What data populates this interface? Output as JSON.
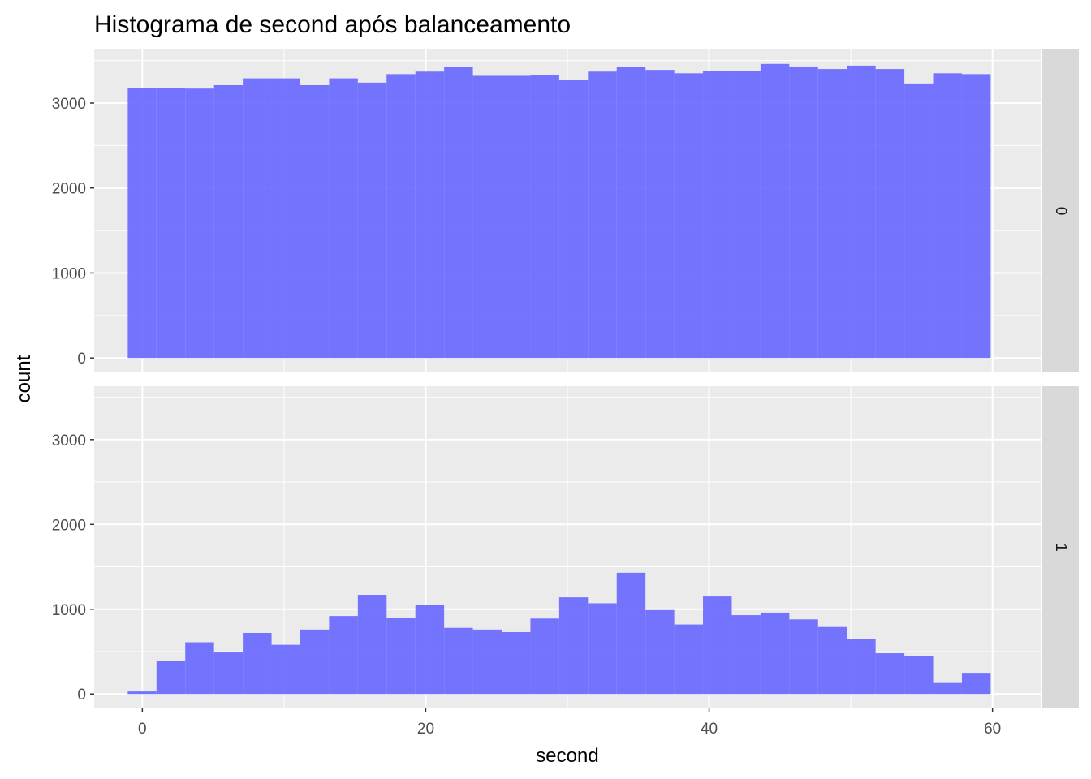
{
  "chart_data": {
    "type": "bar",
    "title": "Histograma de second após balanceamento",
    "xlabel": "second",
    "ylabel": "count",
    "xlim": [
      -3.4,
      63.4
    ],
    "ylim": [
      -170,
      3630
    ],
    "x_ticks": [
      0,
      20,
      40,
      60
    ],
    "y_ticks": [
      0,
      1000,
      2000,
      3000
    ],
    "bin_edges": [
      -1.03,
      1.0,
      3.03,
      5.06,
      7.09,
      9.12,
      11.15,
      13.18,
      15.21,
      17.24,
      19.27,
      21.3,
      23.33,
      25.36,
      27.39,
      29.42,
      31.45,
      33.48,
      35.51,
      37.54,
      39.57,
      41.6,
      43.63,
      45.66,
      47.69,
      49.72,
      51.75,
      53.78,
      55.81,
      57.84,
      59.87
    ],
    "fill_color": "#6666ff",
    "fill_opacity": 0.9,
    "panel_background": "#ebebeb",
    "strip_background": "#d9d9d9",
    "grid": true,
    "legend": "none",
    "facets": [
      {
        "strip": "0",
        "values": [
          3180,
          3180,
          3170,
          3210,
          3290,
          3290,
          3210,
          3290,
          3240,
          3340,
          3370,
          3420,
          3320,
          3320,
          3330,
          3270,
          3370,
          3420,
          3390,
          3350,
          3380,
          3380,
          3460,
          3430,
          3400,
          3440,
          3400,
          3230,
          3350,
          3340
        ]
      },
      {
        "strip": "1",
        "values": [
          30,
          390,
          610,
          490,
          720,
          580,
          760,
          920,
          1170,
          900,
          1050,
          780,
          760,
          730,
          890,
          1140,
          1070,
          1430,
          990,
          820,
          1150,
          930,
          960,
          880,
          790,
          650,
          480,
          450,
          130,
          250
        ]
      }
    ]
  }
}
